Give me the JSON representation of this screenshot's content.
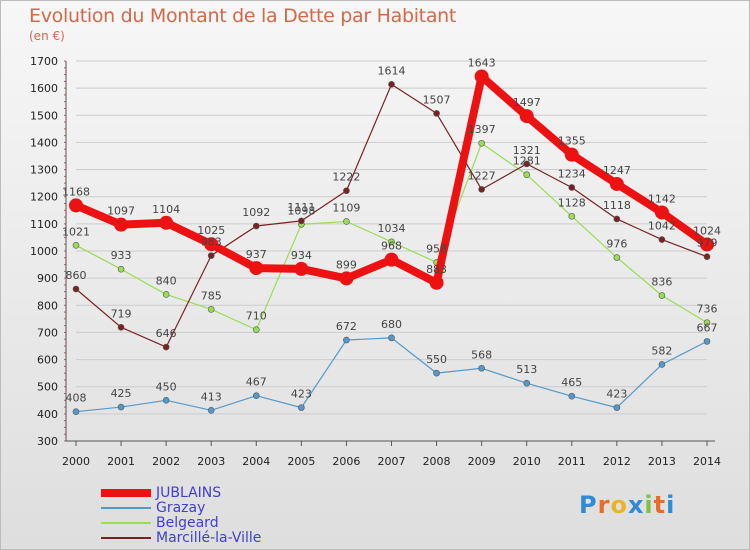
{
  "title": "Evolution du Montant de la Dette par Habitant",
  "subtitle": "(en €)",
  "colors": {
    "axis": "#555555",
    "grid": "#cccccc",
    "tick_text": "#222222",
    "label_text": "#444444",
    "title": "#d06a48",
    "legend_text": "#4040d0"
  },
  "chart_data": {
    "type": "line",
    "x": [
      2000,
      2001,
      2002,
      2003,
      2004,
      2005,
      2006,
      2007,
      2008,
      2009,
      2010,
      2011,
      2012,
      2013,
      2014
    ],
    "ylim": [
      300,
      1700
    ],
    "yticks": [
      300,
      400,
      500,
      600,
      700,
      800,
      900,
      1000,
      1100,
      1200,
      1300,
      1400,
      1500,
      1600,
      1700
    ],
    "grid": "horizontal",
    "legend_position": "bottom-left",
    "series": [
      {
        "name": "JUBLAINS",
        "color": "#ee1111",
        "values": [
          1168,
          1097,
          1104,
          1025,
          937,
          934,
          899,
          968,
          883,
          1643,
          1497,
          1355,
          1247,
          1142,
          1024
        ],
        "labels": [
          "1168",
          "1097",
          "1104",
          "1025",
          "937",
          "934",
          "899",
          "968",
          "883",
          "1643",
          "1497",
          "1355",
          "1247",
          "1142",
          "1024"
        ]
      },
      {
        "name": "Grazay",
        "color": "#5599cc",
        "values": [
          408,
          425,
          450,
          413,
          467,
          423,
          672,
          680,
          550,
          568,
          513,
          465,
          423,
          582,
          667
        ],
        "labels": [
          "408",
          "425",
          "450",
          "413",
          "467",
          "423",
          "672",
          "680",
          "550",
          "568",
          "513",
          "465",
          "423",
          "582",
          "667"
        ]
      },
      {
        "name": "Belgeard",
        "color": "#99dd55",
        "values": [
          1021,
          933,
          840,
          785,
          710,
          1098,
          1109,
          1034,
          958,
          1397,
          1281,
          1128,
          976,
          836,
          736
        ],
        "labels": [
          "1021",
          "933",
          "840",
          "785",
          "710",
          "1098",
          "1109",
          "1034",
          "958",
          "1397",
          "1281",
          "1128",
          "976",
          "836",
          "736"
        ]
      },
      {
        "name": "Marcillé-la-Ville",
        "color": "#7a2222",
        "values": [
          860,
          719,
          646,
          983,
          1092,
          1111,
          1222,
          1614,
          1507,
          1227,
          1321,
          1234,
          1118,
          1042,
          979
        ],
        "labels": [
          "860",
          "719",
          "646",
          "983",
          "1092",
          "1111",
          "1222",
          "1614",
          "1507",
          "1227",
          "1321",
          "1234",
          "1118",
          "1042",
          "979"
        ]
      }
    ]
  },
  "logo": {
    "letters": [
      "P",
      "r",
      "o",
      "x",
      "i",
      "t",
      "i"
    ],
    "colors": [
      "#2f8bd6",
      "#e86d2a",
      "#e8b52a",
      "#2f8bd6",
      "#7cc243",
      "#e86d2a",
      "#2f8bd6"
    ]
  }
}
